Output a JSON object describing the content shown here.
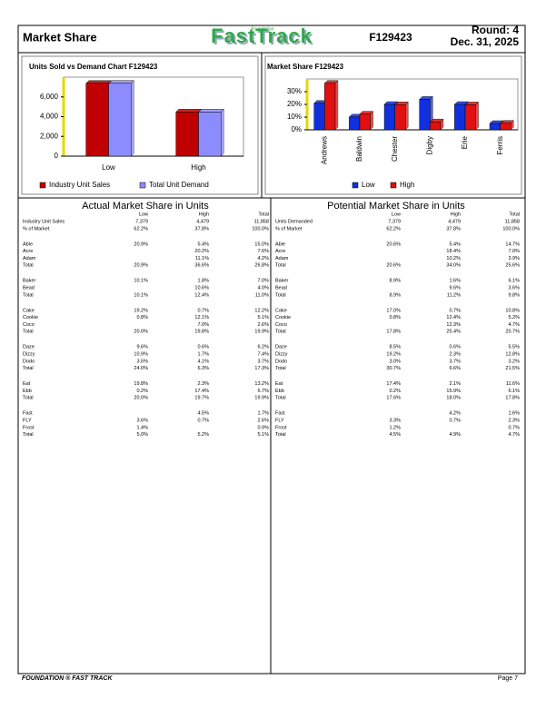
{
  "header": {
    "title": "Market Share",
    "logo_top": "Foundation",
    "logo": "FastTrack",
    "id": "F129423",
    "round": "Round: 4",
    "date": "Dec. 31, 2025"
  },
  "chart_data": [
    {
      "type": "bar",
      "title": "Units Sold vs Demand Chart  F129423",
      "categories": [
        "Low",
        "High"
      ],
      "series": [
        {
          "name": "Industry Unit Sales",
          "color": "#c00000",
          "values": [
            7379,
            4479
          ]
        },
        {
          "name": "Total Unit Demand",
          "color": "#8c8cff",
          "values": [
            7379,
            4479
          ]
        }
      ],
      "ylim": [
        0,
        8000
      ],
      "yticks": [
        0,
        {
          "value": 2000,
          "label": "2,000"
        },
        {
          "value": 4000,
          "label": "4,000"
        },
        {
          "value": 6000,
          "label": "6,000"
        }
      ],
      "grid": false,
      "legend": "bottom"
    },
    {
      "type": "bar",
      "title": "Market Share  F129423",
      "categories": [
        "Andrews",
        "Baldwin",
        "Chester",
        "Digby",
        "Erie",
        "Ferris"
      ],
      "series": [
        {
          "name": "Low",
          "color": "#1030e0",
          "values": [
            20.9,
            10.1,
            20.0,
            24.0,
            20.0,
            5.0
          ]
        },
        {
          "name": "High",
          "color": "#e01010",
          "values": [
            36.6,
            12.4,
            19.8,
            6.3,
            19.7,
            5.2
          ]
        }
      ],
      "ylim": [
        0,
        40
      ],
      "yticks": [
        {
          "value": 0,
          "label": "0%"
        },
        {
          "value": 10,
          "label": "10%"
        },
        {
          "value": 20,
          "label": "20%"
        },
        {
          "value": 30,
          "label": "30%"
        }
      ],
      "grid": false,
      "legend": "bottom"
    }
  ],
  "tables": [
    {
      "title": "Actual Market Share in Units",
      "columns": [
        "Low",
        "High",
        "Total"
      ],
      "groups": [
        [
          {
            "label": "Industry Unit Sales",
            "cells": [
              "7,379",
              "4,479",
              "11,858"
            ]
          },
          {
            "label": "% of Market",
            "cells": [
              "62.2%",
              "37.8%",
              "100.0%"
            ]
          }
        ],
        [
          {
            "label": "Able",
            "cells": [
              "20.9%",
              "5.4%",
              "15.0%"
            ]
          },
          {
            "label": "Acre",
            "cells": [
              null,
              "20.2%",
              "7.6%"
            ]
          },
          {
            "label": "Adam",
            "cells": [
              null,
              "11.1%",
              "4.2%"
            ]
          },
          {
            "label": "Total",
            "cells": [
              "20.9%",
              "36.6%",
              "26.8%"
            ]
          }
        ],
        [
          {
            "label": "Baker",
            "cells": [
              "10.1%",
              "1.8%",
              "7.0%"
            ]
          },
          {
            "label": "Bead",
            "cells": [
              null,
              "10.6%",
              "4.0%"
            ]
          },
          {
            "label": "Total",
            "cells": [
              "10.1%",
              "12.4%",
              "11.0%"
            ]
          }
        ],
        [
          {
            "label": "Cake",
            "cells": [
              "19.2%",
              "0.7%",
              "12.2%"
            ]
          },
          {
            "label": "Cookie",
            "cells": [
              "0.8%",
              "12.1%",
              "5.1%"
            ]
          },
          {
            "label": "Coco",
            "cells": [
              null,
              "7.0%",
              "2.6%"
            ]
          },
          {
            "label": "Total",
            "cells": [
              "20.0%",
              "19.8%",
              "19.9%"
            ]
          }
        ],
        [
          {
            "label": "Daze",
            "cells": [
              "9.6%",
              "0.6%",
              "6.2%"
            ]
          },
          {
            "label": "Dizzy",
            "cells": [
              "10.9%",
              "1.7%",
              "7.4%"
            ]
          },
          {
            "label": "Dodo",
            "cells": [
              "3.5%",
              "4.1%",
              "3.7%"
            ]
          },
          {
            "label": "Total",
            "cells": [
              "24.0%",
              "6.3%",
              "17.3%"
            ]
          }
        ],
        [
          {
            "label": "Eat",
            "cells": [
              "19.8%",
              "2.3%",
              "13.2%"
            ]
          },
          {
            "label": "Ebb",
            "cells": [
              "0.2%",
              "17.4%",
              "6.7%"
            ]
          },
          {
            "label": "Total",
            "cells": [
              "20.0%",
              "19.7%",
              "19.9%"
            ]
          }
        ],
        [
          {
            "label": "Fast",
            "cells": [
              null,
              "4.5%",
              "1.7%"
            ]
          },
          {
            "label": "FLY",
            "cells": [
              "3.6%",
              "0.7%",
              "2.6%"
            ]
          },
          {
            "label": "Frost",
            "cells": [
              "1.4%",
              null,
              "0.9%"
            ]
          },
          {
            "label": "Total",
            "cells": [
              "5.0%",
              "5.2%",
              "5.1%"
            ]
          }
        ]
      ]
    },
    {
      "title": "Potential Market Share in Units",
      "columns": [
        "Low",
        "High",
        "Total"
      ],
      "groups": [
        [
          {
            "label": "Units Demanded",
            "cells": [
              "7,379",
              "4,479",
              "11,858"
            ]
          },
          {
            "label": "% of Market",
            "cells": [
              "62.2%",
              "37.8%",
              "100.0%"
            ]
          }
        ],
        [
          {
            "label": "Able",
            "cells": [
              "20.6%",
              "5.4%",
              "14.7%"
            ]
          },
          {
            "label": "Acre",
            "cells": [
              null,
              "18.4%",
              "7.0%"
            ]
          },
          {
            "label": "Adam",
            "cells": [
              null,
              "10.2%",
              "3.9%"
            ]
          },
          {
            "label": "Total",
            "cells": [
              "20.6%",
              "34.0%",
              "25.6%"
            ]
          }
        ],
        [
          {
            "label": "Baker",
            "cells": [
              "8.9%",
              "1.6%",
              "6.1%"
            ]
          },
          {
            "label": "Bead",
            "cells": [
              null,
              "9.6%",
              "3.6%"
            ]
          },
          {
            "label": "Total",
            "cells": [
              "8.9%",
              "11.2%",
              "9.8%"
            ]
          }
        ],
        [
          {
            "label": "Cake",
            "cells": [
              "17.0%",
              "0.7%",
              "10.8%"
            ]
          },
          {
            "label": "Cookie",
            "cells": [
              "0.8%",
              "12.4%",
              "5.2%"
            ]
          },
          {
            "label": "Coco",
            "cells": [
              null,
              "12.3%",
              "4.7%"
            ]
          },
          {
            "label": "Total",
            "cells": [
              "17.8%",
              "25.4%",
              "20.7%"
            ]
          }
        ],
        [
          {
            "label": "Daze",
            "cells": [
              "8.5%",
              "0.6%",
              "5.5%"
            ]
          },
          {
            "label": "Dizzy",
            "cells": [
              "19.2%",
              "2.3%",
              "12.8%"
            ]
          },
          {
            "label": "Dodo",
            "cells": [
              "3.0%",
              "3.7%",
              "3.2%"
            ]
          },
          {
            "label": "Total",
            "cells": [
              "30.7%",
              "6.6%",
              "21.5%"
            ]
          }
        ],
        [
          {
            "label": "Eat",
            "cells": [
              "17.4%",
              "2.1%",
              "11.6%"
            ]
          },
          {
            "label": "Ebb",
            "cells": [
              "0.2%",
              "15.9%",
              "6.1%"
            ]
          },
          {
            "label": "Total",
            "cells": [
              "17.6%",
              "18.0%",
              "17.8%"
            ]
          }
        ],
        [
          {
            "label": "Fast",
            "cells": [
              null,
              "4.2%",
              "1.6%"
            ]
          },
          {
            "label": "FLY",
            "cells": [
              "3.3%",
              "0.7%",
              "2.3%"
            ]
          },
          {
            "label": "Frost",
            "cells": [
              "1.2%",
              null,
              "0.7%"
            ]
          },
          {
            "label": "Total",
            "cells": [
              "4.5%",
              "4.9%",
              "4.7%"
            ]
          }
        ]
      ]
    }
  ],
  "footer": {
    "left": "FOUNDATION ® FAST TRACK",
    "right": "Page 7"
  }
}
